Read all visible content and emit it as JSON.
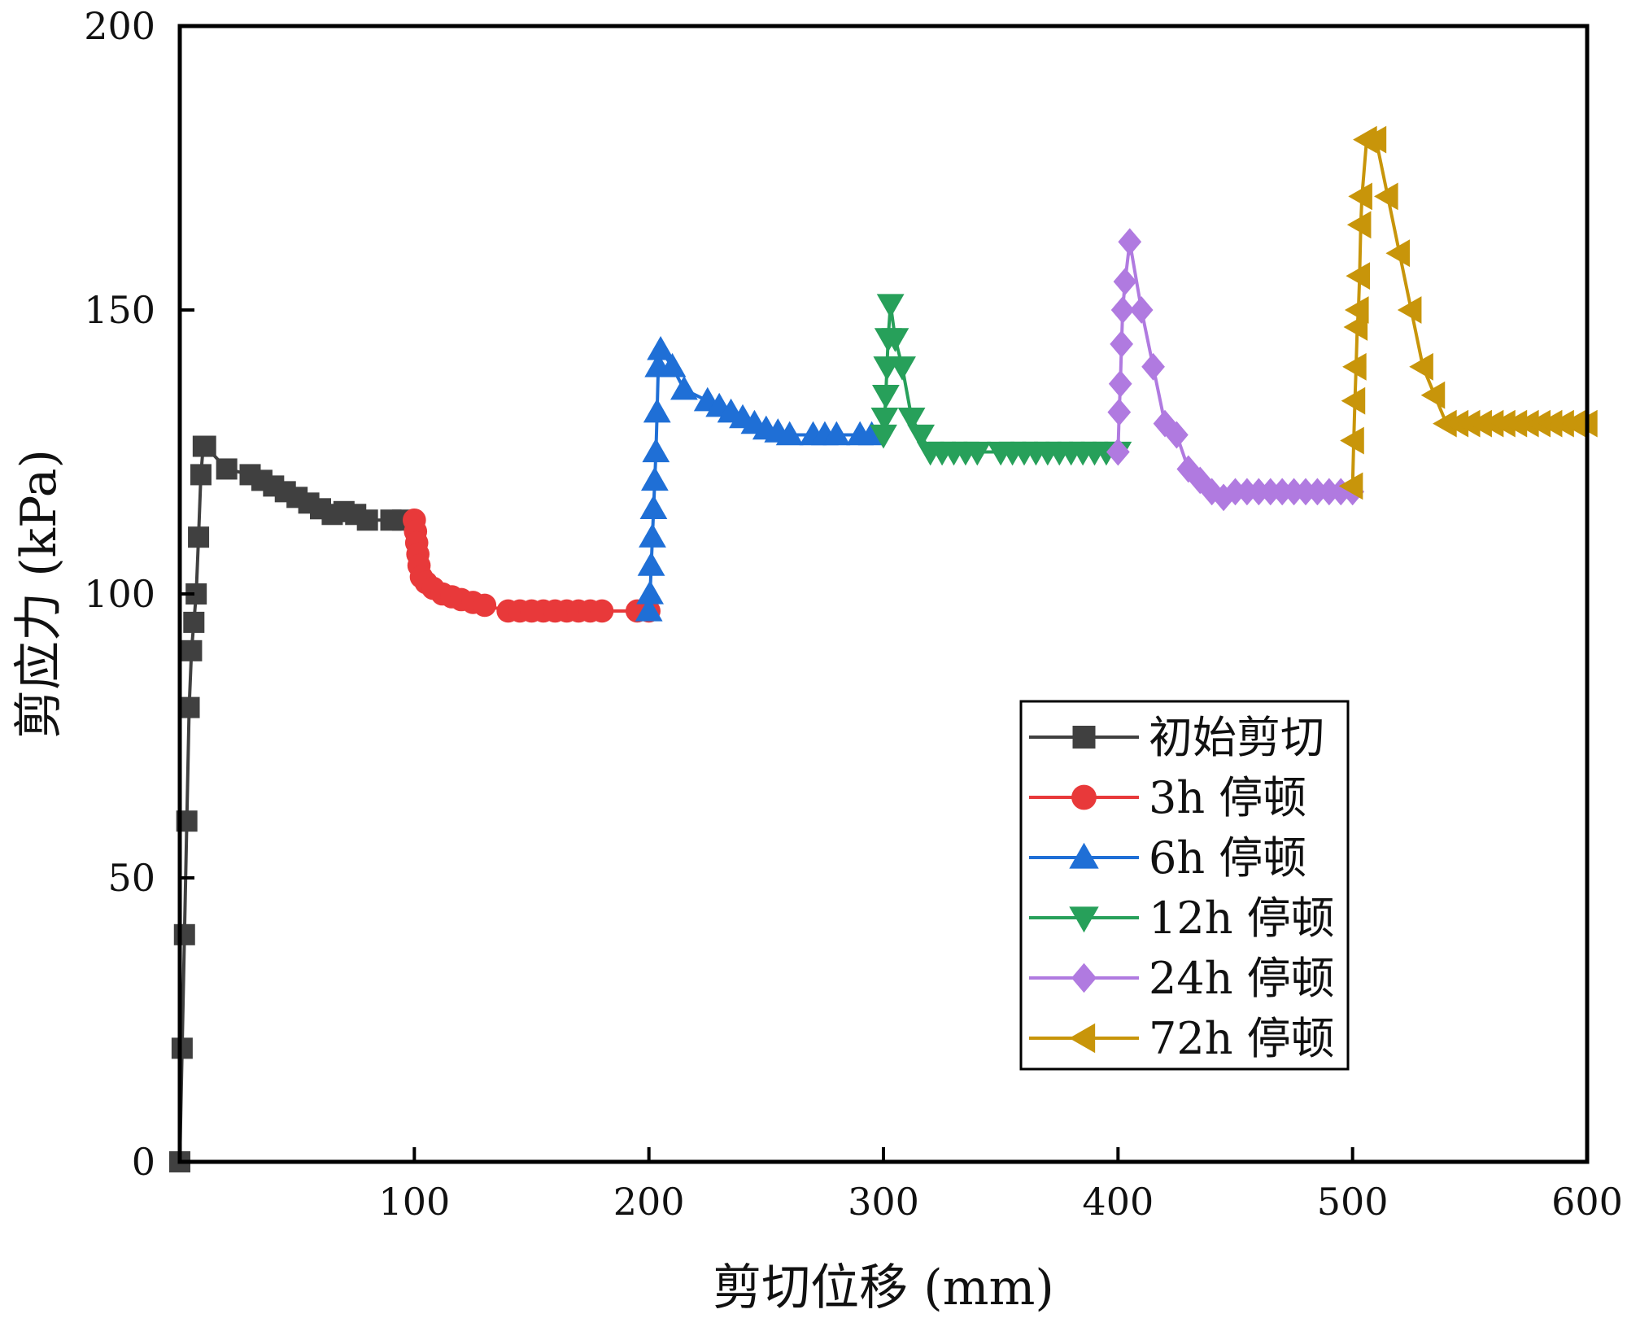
{
  "chart_data": {
    "type": "line",
    "title": "",
    "xlabel": "剪切位移 (mm)",
    "ylabel": "剪应力 (kPa)",
    "xlim": [
      0,
      600
    ],
    "ylim": [
      0,
      200
    ],
    "xticks": [
      100,
      200,
      300,
      400,
      500,
      600
    ],
    "yticks": [
      0,
      50,
      100,
      150,
      200
    ],
    "grid": false,
    "legend_position": "center-right",
    "series": [
      {
        "name": "初始剪切",
        "color": "#404040",
        "marker": "square",
        "x": [
          0,
          1,
          2,
          3,
          4,
          5,
          6,
          7,
          8,
          9,
          10,
          11,
          20,
          30,
          35,
          40,
          45,
          50,
          55,
          60,
          65,
          70,
          75,
          80,
          90,
          95
        ],
        "y": [
          0,
          20,
          40,
          60,
          80,
          90,
          95,
          100,
          110,
          121,
          126,
          126,
          122,
          121,
          120,
          119,
          118,
          117,
          116,
          115,
          114,
          114.5,
          114,
          113,
          113,
          113
        ]
      },
      {
        "name": "3h 停顿",
        "color": "#e8393a",
        "marker": "circle",
        "x": [
          100,
          100.5,
          101,
          101.5,
          102,
          103,
          105,
          108,
          112,
          116,
          120,
          125,
          130,
          140,
          145,
          150,
          155,
          160,
          165,
          170,
          175,
          180,
          195,
          200
        ],
        "y": [
          113,
          111,
          109,
          107,
          105,
          103,
          102,
          101,
          100,
          99.5,
          99,
          98.5,
          98,
          97,
          97,
          97,
          97,
          97,
          97,
          97,
          97,
          97,
          97,
          97
        ]
      },
      {
        "name": "6h 停顿",
        "color": "#1f6fd6",
        "marker": "triangle-up",
        "x": [
          200,
          200.5,
          201,
          201.5,
          202,
          202.5,
          203,
          203.5,
          204,
          205,
          210,
          215,
          225,
          230,
          235,
          240,
          245,
          250,
          255,
          260,
          270,
          275,
          280,
          290,
          295
        ],
        "y": [
          97,
          100,
          105,
          110,
          115,
          120,
          125,
          132,
          140,
          143,
          140,
          136,
          134,
          133,
          132,
          131,
          130,
          129,
          128.5,
          128,
          128,
          128,
          128,
          128,
          128
        ]
      },
      {
        "name": "12h 停顿",
        "color": "#27a05a",
        "marker": "triangle-down",
        "x": [
          300,
          300.5,
          301,
          301.5,
          302,
          303,
          305,
          308,
          312,
          316,
          320,
          325,
          330,
          335,
          340,
          350,
          355,
          360,
          365,
          370,
          375,
          380,
          385,
          390,
          395,
          400
        ],
        "y": [
          128,
          131,
          135,
          140,
          145,
          151,
          145,
          140,
          131,
          128,
          125,
          125,
          125,
          125,
          125,
          125,
          125,
          125,
          125,
          125,
          125,
          125,
          125,
          125,
          125,
          125
        ]
      },
      {
        "name": "24h 停顿",
        "color": "#b07ae0",
        "marker": "diamond",
        "x": [
          400,
          400.5,
          401,
          401.5,
          402,
          403,
          405,
          410,
          415,
          420,
          425,
          430,
          435,
          440,
          445,
          450,
          455,
          460,
          465,
          470,
          475,
          480,
          485,
          490,
          495,
          500
        ],
        "y": [
          125,
          132,
          137,
          144,
          150,
          155,
          162,
          150,
          140,
          130,
          128,
          122,
          120,
          118,
          117,
          118,
          118,
          118,
          118,
          118,
          118,
          118,
          118,
          118,
          118,
          118
        ]
      },
      {
        "name": "72h 停顿",
        "color": "#c8950a",
        "marker": "triangle-left",
        "x": [
          500,
          500.5,
          501,
          501.5,
          502,
          502.5,
          503,
          503.5,
          504,
          506,
          510,
          515,
          520,
          525,
          530,
          535,
          540,
          545,
          550,
          555,
          560,
          565,
          570,
          575,
          580,
          585,
          590,
          595,
          600
        ],
        "y": [
          119,
          127,
          134,
          140,
          147,
          150,
          156,
          165,
          170,
          180,
          180,
          170,
          160,
          150,
          140,
          135,
          130,
          130,
          130,
          130,
          130,
          130,
          130,
          130,
          130,
          130,
          130,
          130,
          130
        ]
      }
    ]
  }
}
